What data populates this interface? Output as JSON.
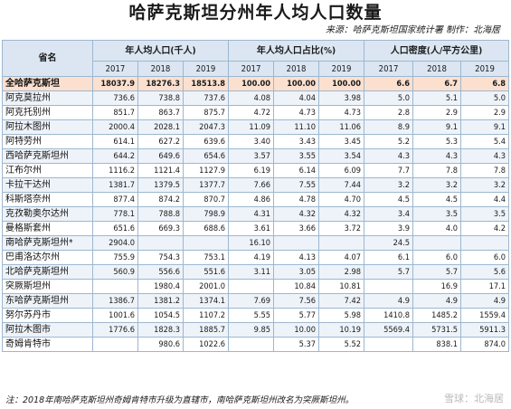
{
  "title": "哈萨克斯坦分州年人均人口数量",
  "source": "来源：哈萨克斯坦国家统计署 制作：北海居",
  "headers": {
    "region": "省名",
    "group1": "年人均人口(千人)",
    "group2": "年人均人口占比(%)",
    "group3": "人口密度(人/平方公里)",
    "years": [
      "2017",
      "2018",
      "2019"
    ]
  },
  "rows": [
    {
      "name": "全哈萨克斯坦",
      "v": [
        "18037.9",
        "18276.3",
        "18513.8",
        "100.00",
        "100.00",
        "100.00",
        "6.6",
        "6.7",
        "6.8"
      ]
    },
    {
      "name": "阿克莫拉州",
      "v": [
        "736.6",
        "738.8",
        "737.6",
        "4.08",
        "4.04",
        "3.98",
        "5.0",
        "5.1",
        "5.0"
      ]
    },
    {
      "name": "阿克托别州",
      "v": [
        "851.7",
        "863.7",
        "875.7",
        "4.72",
        "4.73",
        "4.73",
        "2.8",
        "2.9",
        "2.9"
      ]
    },
    {
      "name": "阿拉木图州",
      "v": [
        "2000.4",
        "2028.1",
        "2047.3",
        "11.09",
        "11.10",
        "11.06",
        "8.9",
        "9.1",
        "9.1"
      ]
    },
    {
      "name": "阿特劳州",
      "v": [
        "614.1",
        "627.2",
        "639.6",
        "3.40",
        "3.43",
        "3.45",
        "5.2",
        "5.3",
        "5.4"
      ]
    },
    {
      "name": "西哈萨克斯坦州",
      "v": [
        "644.2",
        "649.6",
        "654.6",
        "3.57",
        "3.55",
        "3.54",
        "4.3",
        "4.3",
        "4.3"
      ]
    },
    {
      "name": "江布尔州",
      "v": [
        "1116.2",
        "1121.4",
        "1127.9",
        "6.19",
        "6.14",
        "6.09",
        "7.7",
        "7.8",
        "7.8"
      ]
    },
    {
      "name": "卡拉干达州",
      "v": [
        "1381.7",
        "1379.5",
        "1377.7",
        "7.66",
        "7.55",
        "7.44",
        "3.2",
        "3.2",
        "3.2"
      ]
    },
    {
      "name": "科斯塔奈州",
      "v": [
        "877.4",
        "874.2",
        "870.7",
        "4.86",
        "4.78",
        "4.70",
        "4.5",
        "4.5",
        "4.4"
      ]
    },
    {
      "name": "克孜勒奥尔达州",
      "v": [
        "778.1",
        "788.8",
        "798.9",
        "4.31",
        "4.32",
        "4.32",
        "3.4",
        "3.5",
        "3.5"
      ]
    },
    {
      "name": "曼格斯套州",
      "v": [
        "651.6",
        "669.3",
        "688.6",
        "3.61",
        "3.66",
        "3.72",
        "3.9",
        "4.0",
        "4.2"
      ]
    },
    {
      "name": "南哈萨克斯坦州*",
      "v": [
        "2904.0",
        "",
        "",
        "16.10",
        "",
        "",
        "24.5",
        "",
        ""
      ]
    },
    {
      "name": "巴甫洛达尔州",
      "v": [
        "755.9",
        "754.3",
        "753.1",
        "4.19",
        "4.13",
        "4.07",
        "6.1",
        "6.0",
        "6.0"
      ]
    },
    {
      "name": "北哈萨克斯坦州",
      "v": [
        "560.9",
        "556.6",
        "551.6",
        "3.11",
        "3.05",
        "2.98",
        "5.7",
        "5.7",
        "5.6"
      ]
    },
    {
      "name": "突厥斯坦州",
      "v": [
        "",
        "1980.4",
        "2001.0",
        "",
        "10.84",
        "10.81",
        "",
        "16.9",
        "17.1"
      ]
    },
    {
      "name": "东哈萨克斯坦州",
      "v": [
        "1386.7",
        "1381.2",
        "1374.1",
        "7.69",
        "7.56",
        "7.42",
        "4.9",
        "4.9",
        "4.9"
      ]
    },
    {
      "name": "努尔苏丹市",
      "v": [
        "1001.6",
        "1054.5",
        "1107.2",
        "5.55",
        "5.77",
        "5.98",
        "1410.8",
        "1485.2",
        "1559.4"
      ]
    },
    {
      "name": "阿拉木图市",
      "v": [
        "1776.6",
        "1828.3",
        "1885.7",
        "9.85",
        "10.00",
        "10.19",
        "5569.4",
        "5731.5",
        "5911.3"
      ]
    },
    {
      "name": "奇姆肯特市",
      "v": [
        "",
        "980.6",
        "1022.6",
        "",
        "5.37",
        "5.52",
        "",
        "838.1",
        "874.0"
      ]
    }
  ],
  "note": "注：2018年南哈萨克斯坦州奇姆肯特市升级为直辖市，南哈萨克斯坦州改名为突厥斯坦州。",
  "watermark": "雪球：北海居"
}
